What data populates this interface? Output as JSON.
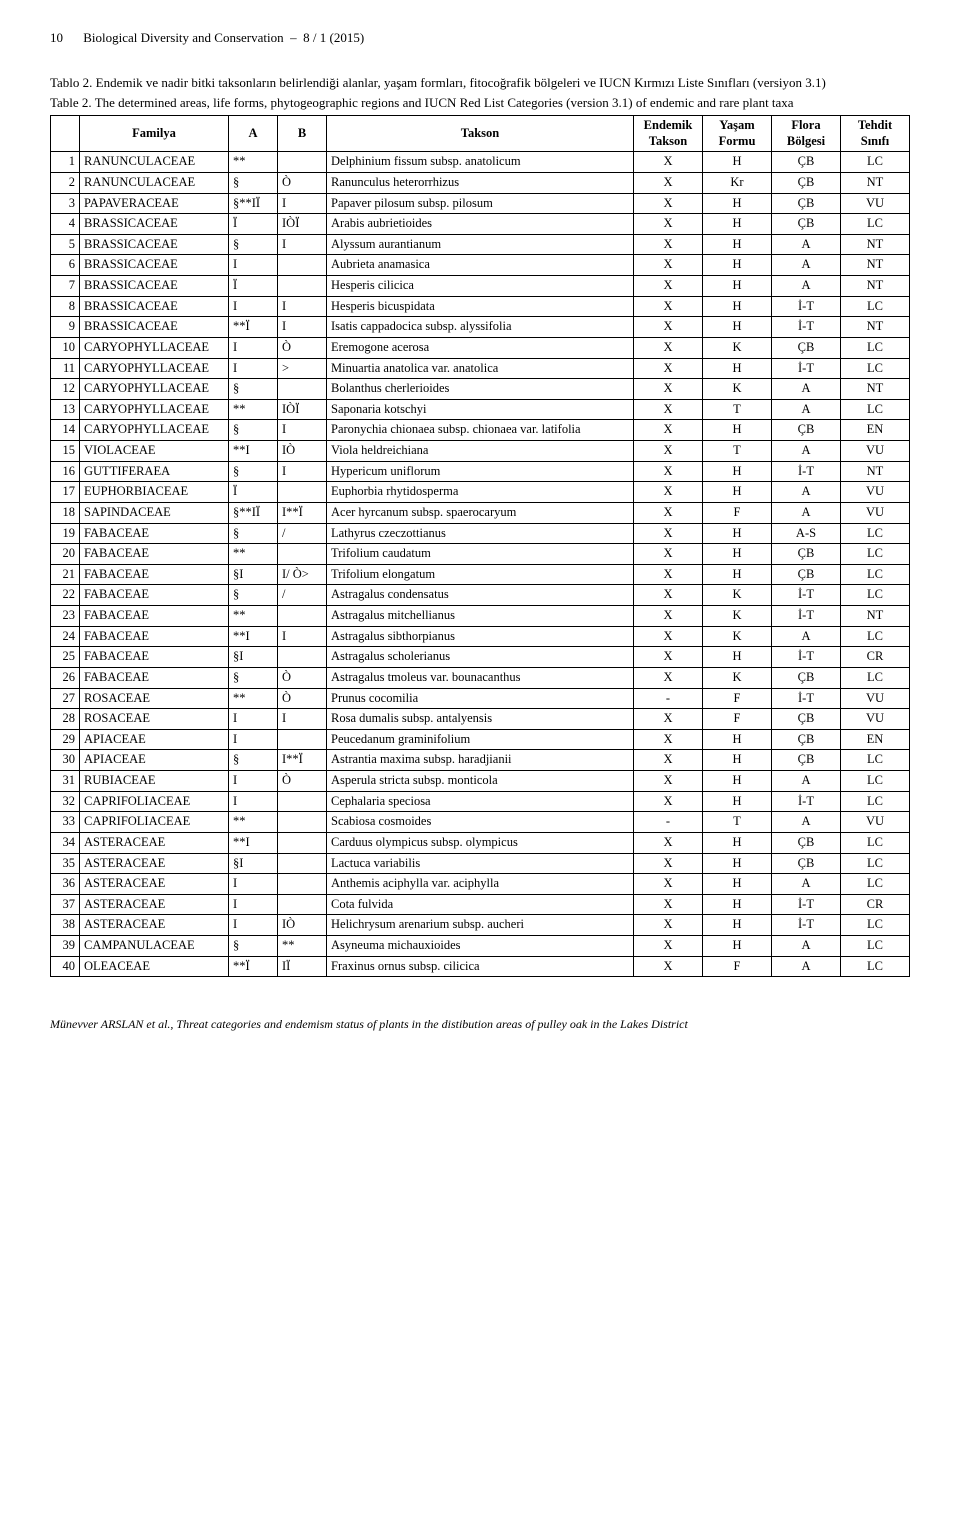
{
  "meta": {
    "page_number": "10",
    "journal": "Biological Diversity and Conservation",
    "issue": "8 / 1 (2015)"
  },
  "caption": {
    "tr_label": "Tablo 2.",
    "tr_text": " Endemik ve nadir bitki taksonların belirlendiği alanlar, yaşam formları, fitocoğrafik bölgeleri ve IUCN Kırmızı Liste Sınıfları (versiyon 3.1)",
    "en_label": "Table 2.",
    "en_text": " The determined areas, life forms, phytogeographic regions and IUCN Red List Categories (version 3.1) of endemic and rare plant taxa"
  },
  "headers": {
    "familya": "Familya",
    "a": "A",
    "b": "B",
    "takson": "Takson",
    "endemik1": "Endemik",
    "endemik2": "Takson",
    "yasam1": "Yaşam",
    "yasam2": "Formu",
    "flora1": "Flora",
    "flora2": "Bölgesi",
    "tehdit1": "Tehdit",
    "tehdit2": "Sınıfı"
  },
  "rows": [
    {
      "n": "1",
      "fam": "RANUNCULACEAE",
      "a": "**",
      "b": "",
      "tak": "Delphinium fissum subsp. anatolicum",
      "e": "X",
      "y": "H",
      "f": "ÇB",
      "t": "LC"
    },
    {
      "n": "2",
      "fam": "RANUNCULACEAE",
      "a": "§",
      "b": "Ò",
      "tak": "Ranunculus heterorrhizus",
      "e": "X",
      "y": "Kr",
      "f": "ÇB",
      "t": "NT"
    },
    {
      "n": "3",
      "fam": "PAPAVERACEAE",
      "a": "§**IÏ",
      "b": "I",
      "tak": "Papaver pilosum subsp. pilosum",
      "e": "X",
      "y": "H",
      "f": "ÇB",
      "t": "VU"
    },
    {
      "n": "4",
      "fam": "BRASSICACEAE",
      "a": "Ï",
      "b": "IÒÏ",
      "tak": "Arabis aubrietioides",
      "e": "X",
      "y": "H",
      "f": "ÇB",
      "t": "LC"
    },
    {
      "n": "5",
      "fam": "BRASSICACEAE",
      "a": "§",
      "b": "I",
      "tak": "Alyssum aurantianum",
      "e": "X",
      "y": "H",
      "f": "A",
      "t": "NT"
    },
    {
      "n": "6",
      "fam": "BRASSICACEAE",
      "a": "I",
      "b": "",
      "tak": "Aubrieta anamasica",
      "e": "X",
      "y": "H",
      "f": "A",
      "t": "NT"
    },
    {
      "n": "7",
      "fam": "BRASSICACEAE",
      "a": "Ï",
      "b": "",
      "tak": "Hesperis cilicica",
      "e": "X",
      "y": "H",
      "f": "A",
      "t": "NT"
    },
    {
      "n": "8",
      "fam": "BRASSICACEAE",
      "a": "I",
      "b": "I",
      "tak": "Hesperis bicuspidata",
      "e": "X",
      "y": "H",
      "f": "İ-T",
      "t": "LC"
    },
    {
      "n": "9",
      "fam": "BRASSICACEAE",
      "a": "**Ï",
      "b": "I",
      "tak": "Isatis cappadocica subsp. alyssifolia",
      "e": "X",
      "y": "H",
      "f": "İ-T",
      "t": "NT"
    },
    {
      "n": "10",
      "fam": "CARYOPHYLLACEAE",
      "a": "I",
      "b": "Ò",
      "tak": "Eremogone acerosa",
      "e": "X",
      "y": "K",
      "f": "ÇB",
      "t": "LC"
    },
    {
      "n": "11",
      "fam": "CARYOPHYLLACEAE",
      "a": "I",
      "b": ">",
      "tak": "Minuartia anatolica var. anatolica",
      "e": "X",
      "y": "H",
      "f": "İ-T",
      "t": "LC"
    },
    {
      "n": "12",
      "fam": "CARYOPHYLLACEAE",
      "a": "§",
      "b": "",
      "tak": "Bolanthus cherlerioides",
      "e": "X",
      "y": "K",
      "f": "A",
      "t": "NT"
    },
    {
      "n": "13",
      "fam": "CARYOPHYLLACEAE",
      "a": "**",
      "b": "IÒÏ",
      "tak": "Saponaria kotschyi",
      "e": "X",
      "y": "T",
      "f": "A",
      "t": "LC"
    },
    {
      "n": "14",
      "fam": "CARYOPHYLLACEAE",
      "a": "§",
      "b": "I",
      "tak": "Paronychia chionaea subsp. chionaea var. latifolia",
      "e": "X",
      "y": "H",
      "f": "ÇB",
      "t": "EN"
    },
    {
      "n": "15",
      "fam": "VIOLACEAE",
      "a": "**I",
      "b": "IÒ",
      "tak": "Viola heldreichiana",
      "e": "X",
      "y": "T",
      "f": "A",
      "t": "VU"
    },
    {
      "n": "16",
      "fam": "GUTTIFERAEA",
      "a": "§",
      "b": "I",
      "tak": "Hypericum uniflorum",
      "e": "X",
      "y": "H",
      "f": "İ-T",
      "t": "NT"
    },
    {
      "n": "17",
      "fam": "EUPHORBIACEAE",
      "a": "Ï",
      "b": "",
      "tak": "Euphorbia rhytidosperma",
      "e": "X",
      "y": "H",
      "f": "A",
      "t": "VU"
    },
    {
      "n": "18",
      "fam": "SAPINDACEAE",
      "a": "§**IÏ",
      "b": "I**Ï",
      "tak": "Acer hyrcanum subsp. spaerocaryum",
      "e": "X",
      "y": "F",
      "f": "A",
      "t": "VU"
    },
    {
      "n": "19",
      "fam": "FABACEAE",
      "a": "§",
      "b": "/",
      "tak": "Lathyrus czeczottianus",
      "e": "X",
      "y": "H",
      "f": "A-S",
      "t": "LC"
    },
    {
      "n": "20",
      "fam": "FABACEAE",
      "a": "**",
      "b": "",
      "tak": "Trifolium caudatum",
      "e": "X",
      "y": "H",
      "f": "ÇB",
      "t": "LC"
    },
    {
      "n": "21",
      "fam": "FABACEAE",
      "a": "§I",
      "b": "I/ Ò>",
      "tak": "Trifolium elongatum",
      "e": "X",
      "y": "H",
      "f": "ÇB",
      "t": "LC"
    },
    {
      "n": "22",
      "fam": "FABACEAE",
      "a": "§",
      "b": "/",
      "tak": "Astragalus condensatus",
      "e": "X",
      "y": "K",
      "f": "İ-T",
      "t": "LC"
    },
    {
      "n": "23",
      "fam": "FABACEAE",
      "a": "**",
      "b": "",
      "tak": "Astragalus mitchellianus",
      "e": "X",
      "y": "K",
      "f": "İ-T",
      "t": "NT"
    },
    {
      "n": "24",
      "fam": "FABACEAE",
      "a": "**I",
      "b": "I",
      "tak": "Astragalus sibthorpianus",
      "e": "X",
      "y": "K",
      "f": "A",
      "t": "LC"
    },
    {
      "n": "25",
      "fam": "FABACEAE",
      "a": "§I",
      "b": "",
      "tak": "Astragalus scholerianus",
      "e": "X",
      "y": "H",
      "f": "İ-T",
      "t": "CR"
    },
    {
      "n": "26",
      "fam": "FABACEAE",
      "a": "§",
      "b": "Ò",
      "tak": "Astragalus tmoleus var. bounacanthus",
      "e": "X",
      "y": "K",
      "f": "ÇB",
      "t": "LC"
    },
    {
      "n": "27",
      "fam": "ROSACEAE",
      "a": "**",
      "b": "Ò",
      "tak": "Prunus cocomilia",
      "e": "-",
      "y": "F",
      "f": "İ-T",
      "t": "VU"
    },
    {
      "n": "28",
      "fam": "ROSACEAE",
      "a": "I",
      "b": "I",
      "tak": "Rosa dumalis subsp. antalyensis",
      "e": "X",
      "y": "F",
      "f": "ÇB",
      "t": "VU"
    },
    {
      "n": "29",
      "fam": "APIACEAE",
      "a": "I",
      "b": "",
      "tak": "Peucedanum graminifolium",
      "e": "X",
      "y": "H",
      "f": "ÇB",
      "t": "EN"
    },
    {
      "n": "30",
      "fam": "APIACEAE",
      "a": "§",
      "b": "I**Ï",
      "tak": "Astrantia maxima subsp. haradjianii",
      "e": "X",
      "y": "H",
      "f": "ÇB",
      "t": "LC"
    },
    {
      "n": "31",
      "fam": "RUBIACEAE",
      "a": "I",
      "b": "Ò",
      "tak": "Asperula stricta subsp. monticola",
      "e": "X",
      "y": "H",
      "f": "A",
      "t": "LC"
    },
    {
      "n": "32",
      "fam": "CAPRIFOLIACEAE",
      "a": "I",
      "b": "",
      "tak": "Cephalaria speciosa",
      "e": "X",
      "y": "H",
      "f": "İ-T",
      "t": "LC"
    },
    {
      "n": "33",
      "fam": "CAPRIFOLIACEAE",
      "a": "**",
      "b": "",
      "tak": "Scabiosa cosmoides",
      "e": "-",
      "y": "T",
      "f": "A",
      "t": "VU"
    },
    {
      "n": "34",
      "fam": "ASTERACEAE",
      "a": "**I",
      "b": "",
      "tak": "Carduus olympicus subsp. olympicus",
      "e": "X",
      "y": "H",
      "f": "ÇB",
      "t": "LC"
    },
    {
      "n": "35",
      "fam": "ASTERACEAE",
      "a": "§I",
      "b": "",
      "tak": "Lactuca variabilis",
      "e": "X",
      "y": "H",
      "f": "ÇB",
      "t": "LC"
    },
    {
      "n": "36",
      "fam": "ASTERACEAE",
      "a": "I",
      "b": "",
      "tak": "Anthemis aciphylla var. aciphylla",
      "e": "X",
      "y": "H",
      "f": "A",
      "t": "LC"
    },
    {
      "n": "37",
      "fam": "ASTERACEAE",
      "a": "I",
      "b": "",
      "tak": "Cota fulvida",
      "e": "X",
      "y": "H",
      "f": "İ-T",
      "t": "CR"
    },
    {
      "n": "38",
      "fam": "ASTERACEAE",
      "a": "I",
      "b": "IÒ",
      "tak": "Helichrysum arenarium subsp. aucheri",
      "e": "X",
      "y": "H",
      "f": "İ-T",
      "t": "LC"
    },
    {
      "n": "39",
      "fam": "CAMPANULACEAE",
      "a": "§",
      "b": "**",
      "tak": "Asyneuma michauxioides",
      "e": "X",
      "y": "H",
      "f": "A",
      "t": "LC"
    },
    {
      "n": "40",
      "fam": "OLEACEAE",
      "a": "**Ï",
      "b": "IÏ",
      "tak": "Fraxinus ornus subsp. cilicica",
      "e": "X",
      "y": "F",
      "f": "A",
      "t": "LC"
    }
  ],
  "footer": {
    "authors": "Münevver ARSLAN et al.",
    "text": ", Threat categories and endemism status of plants in the distibution areas of pulley oak in the Lakes District"
  }
}
